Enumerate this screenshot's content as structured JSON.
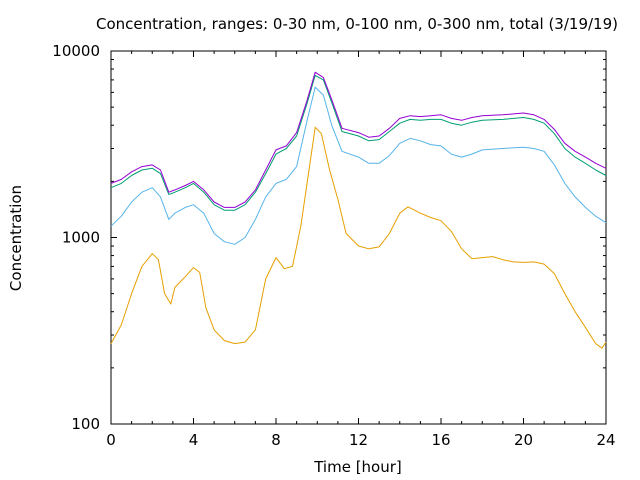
{
  "chart_data": {
    "type": "line",
    "title": "Concentration, ranges: 0-30 nm, 0-100 nm, 0-300 nm, total (3/19/19)",
    "xlabel": "Time [hour]",
    "ylabel": "Concentration",
    "xlim": [
      0,
      24
    ],
    "ylim": [
      100,
      10000
    ],
    "yscale": "log",
    "grid": false,
    "legend": "none",
    "x_ticks": [
      0,
      4,
      8,
      12,
      16,
      20,
      24
    ],
    "x_tick_labels": [
      "0",
      "4",
      "8",
      "12",
      "16",
      "20",
      "24"
    ],
    "y_ticks": [
      100,
      1000,
      10000
    ],
    "y_tick_labels": [
      "100",
      "1000",
      "10000"
    ],
    "series": [
      {
        "color": "#e69f00",
        "points": [
          [
            0,
            270
          ],
          [
            0.5,
            340
          ],
          [
            1,
            500
          ],
          [
            1.5,
            700
          ],
          [
            2,
            820
          ],
          [
            2.3,
            760
          ],
          [
            2.6,
            500
          ],
          [
            2.9,
            440
          ],
          [
            3.1,
            540
          ],
          [
            3.5,
            600
          ],
          [
            4,
            690
          ],
          [
            4.3,
            650
          ],
          [
            4.6,
            420
          ],
          [
            5,
            320
          ],
          [
            5.5,
            280
          ],
          [
            6,
            270
          ],
          [
            6.5,
            275
          ],
          [
            7,
            320
          ],
          [
            7.5,
            600
          ],
          [
            8,
            780
          ],
          [
            8.4,
            680
          ],
          [
            8.8,
            700
          ],
          [
            9.2,
            1150
          ],
          [
            9.6,
            2300
          ],
          [
            9.9,
            3900
          ],
          [
            10.2,
            3600
          ],
          [
            10.6,
            2300
          ],
          [
            11,
            1600
          ],
          [
            11.4,
            1050
          ],
          [
            12,
            900
          ],
          [
            12.5,
            870
          ],
          [
            13,
            890
          ],
          [
            13.5,
            1050
          ],
          [
            14,
            1350
          ],
          [
            14.4,
            1460
          ],
          [
            15,
            1350
          ],
          [
            15.5,
            1280
          ],
          [
            16,
            1230
          ],
          [
            16.5,
            1080
          ],
          [
            17,
            870
          ],
          [
            17.5,
            770
          ],
          [
            18,
            780
          ],
          [
            18.5,
            790
          ],
          [
            19,
            760
          ],
          [
            19.5,
            740
          ],
          [
            20,
            735
          ],
          [
            20.5,
            740
          ],
          [
            21,
            720
          ],
          [
            21.5,
            640
          ],
          [
            22,
            500
          ],
          [
            22.5,
            400
          ],
          [
            23,
            330
          ],
          [
            23.5,
            270
          ],
          [
            23.8,
            255
          ],
          [
            24,
            275
          ]
        ]
      },
      {
        "color": "#56b4e9",
        "points": [
          [
            0,
            1150
          ],
          [
            0.5,
            1300
          ],
          [
            1,
            1550
          ],
          [
            1.5,
            1750
          ],
          [
            2,
            1850
          ],
          [
            2.4,
            1650
          ],
          [
            2.8,
            1250
          ],
          [
            3.1,
            1350
          ],
          [
            3.6,
            1450
          ],
          [
            4,
            1500
          ],
          [
            4.5,
            1350
          ],
          [
            5,
            1050
          ],
          [
            5.5,
            950
          ],
          [
            6,
            920
          ],
          [
            6.5,
            1000
          ],
          [
            7,
            1250
          ],
          [
            7.5,
            1650
          ],
          [
            8,
            1950
          ],
          [
            8.5,
            2050
          ],
          [
            9,
            2400
          ],
          [
            9.5,
            4200
          ],
          [
            9.9,
            6400
          ],
          [
            10.3,
            5800
          ],
          [
            10.7,
            4000
          ],
          [
            11.2,
            2900
          ],
          [
            12,
            2700
          ],
          [
            12.5,
            2500
          ],
          [
            13,
            2500
          ],
          [
            13.5,
            2750
          ],
          [
            14,
            3200
          ],
          [
            14.5,
            3400
          ],
          [
            15,
            3300
          ],
          [
            15.5,
            3150
          ],
          [
            16,
            3100
          ],
          [
            16.5,
            2800
          ],
          [
            17,
            2700
          ],
          [
            17.5,
            2800
          ],
          [
            18,
            2950
          ],
          [
            19,
            3000
          ],
          [
            20,
            3050
          ],
          [
            20.5,
            3000
          ],
          [
            21,
            2900
          ],
          [
            21.5,
            2450
          ],
          [
            22,
            1950
          ],
          [
            22.5,
            1650
          ],
          [
            23,
            1450
          ],
          [
            23.5,
            1300
          ],
          [
            24,
            1200
          ]
        ]
      },
      {
        "color": "#009e73",
        "points": [
          [
            0,
            1850
          ],
          [
            0.5,
            1950
          ],
          [
            1,
            2150
          ],
          [
            1.5,
            2300
          ],
          [
            2,
            2350
          ],
          [
            2.4,
            2200
          ],
          [
            2.8,
            1700
          ],
          [
            3.1,
            1750
          ],
          [
            3.6,
            1850
          ],
          [
            4,
            1950
          ],
          [
            4.5,
            1750
          ],
          [
            5,
            1500
          ],
          [
            5.5,
            1400
          ],
          [
            6,
            1400
          ],
          [
            6.5,
            1500
          ],
          [
            7,
            1750
          ],
          [
            7.5,
            2200
          ],
          [
            8,
            2800
          ],
          [
            8.5,
            3000
          ],
          [
            9,
            3500
          ],
          [
            9.5,
            5200
          ],
          [
            9.9,
            7400
          ],
          [
            10.3,
            7000
          ],
          [
            10.7,
            5300
          ],
          [
            11.2,
            3700
          ],
          [
            12,
            3500
          ],
          [
            12.5,
            3300
          ],
          [
            13,
            3350
          ],
          [
            13.5,
            3700
          ],
          [
            14,
            4100
          ],
          [
            14.5,
            4300
          ],
          [
            15,
            4250
          ],
          [
            15.5,
            4300
          ],
          [
            16,
            4300
          ],
          [
            16.5,
            4100
          ],
          [
            17,
            4000
          ],
          [
            17.5,
            4150
          ],
          [
            18,
            4250
          ],
          [
            19,
            4300
          ],
          [
            20,
            4400
          ],
          [
            20.5,
            4300
          ],
          [
            21,
            4100
          ],
          [
            21.5,
            3600
          ],
          [
            22,
            3000
          ],
          [
            22.5,
            2700
          ],
          [
            23,
            2500
          ],
          [
            23.5,
            2300
          ],
          [
            24,
            2150
          ]
        ]
      },
      {
        "color": "#9400d3",
        "points": [
          [
            0,
            1950
          ],
          [
            0.5,
            2050
          ],
          [
            1,
            2250
          ],
          [
            1.5,
            2400
          ],
          [
            2,
            2450
          ],
          [
            2.4,
            2300
          ],
          [
            2.8,
            1750
          ],
          [
            3.1,
            1800
          ],
          [
            3.6,
            1900
          ],
          [
            4,
            2000
          ],
          [
            4.5,
            1800
          ],
          [
            5,
            1550
          ],
          [
            5.5,
            1450
          ],
          [
            6,
            1450
          ],
          [
            6.5,
            1550
          ],
          [
            7,
            1800
          ],
          [
            7.5,
            2300
          ],
          [
            8,
            2950
          ],
          [
            8.5,
            3100
          ],
          [
            9,
            3650
          ],
          [
            9.5,
            5400
          ],
          [
            9.9,
            7700
          ],
          [
            10.3,
            7200
          ],
          [
            10.7,
            5500
          ],
          [
            11.2,
            3850
          ],
          [
            12,
            3650
          ],
          [
            12.5,
            3450
          ],
          [
            13,
            3500
          ],
          [
            13.5,
            3850
          ],
          [
            14,
            4350
          ],
          [
            14.5,
            4500
          ],
          [
            15,
            4450
          ],
          [
            15.5,
            4500
          ],
          [
            16,
            4550
          ],
          [
            16.5,
            4350
          ],
          [
            17,
            4250
          ],
          [
            17.5,
            4400
          ],
          [
            18,
            4500
          ],
          [
            19,
            4550
          ],
          [
            20,
            4650
          ],
          [
            20.5,
            4550
          ],
          [
            21,
            4300
          ],
          [
            21.5,
            3800
          ],
          [
            22,
            3200
          ],
          [
            22.5,
            2900
          ],
          [
            23,
            2700
          ],
          [
            23.5,
            2500
          ],
          [
            24,
            2350
          ]
        ]
      }
    ]
  }
}
